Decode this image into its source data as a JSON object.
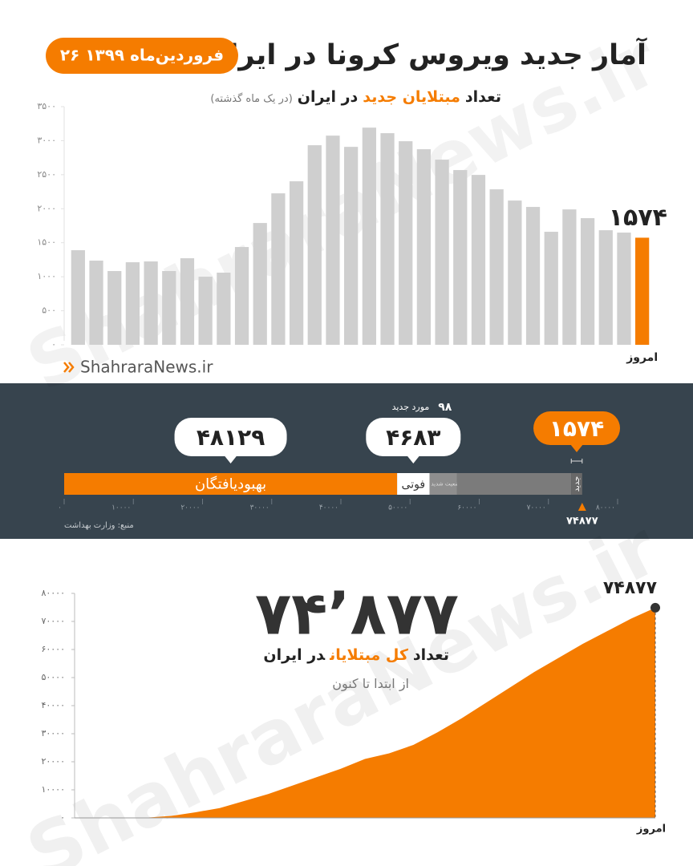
{
  "header": {
    "title": "آمار جدید ویروس کرونا در ایران",
    "date": "۲۶ فروردین‌ماه ۱۳۹۹"
  },
  "watermark": "ShahraraNews.ir",
  "source_link": "ShahraraNews.ir",
  "chart_data": [
    {
      "type": "bar",
      "subtitle": [
        {
          "text": "تعداد",
          "color": "#222222"
        },
        {
          "text": "مبتلایان جدید",
          "color": "#f57c00"
        },
        {
          "text": "در ایران",
          "color": "#222222"
        },
        {
          "text": "(در یک ماه گذشته)",
          "color": "#777777"
        }
      ],
      "categories": [
        null,
        null,
        null,
        null,
        null,
        null,
        null,
        null,
        null,
        null,
        null,
        null,
        null,
        null,
        null,
        null,
        null,
        null,
        null,
        null,
        null,
        null,
        null,
        null,
        null,
        null,
        null,
        null,
        null,
        null,
        null,
        "امروز"
      ],
      "values": [
        1390,
        1237,
        1084,
        1213,
        1225,
        1084,
        1272,
        1001,
        1060,
        1437,
        1790,
        2226,
        2403,
        2933,
        3074,
        2909,
        3192,
        3110,
        2992,
        2874,
        2721,
        2568,
        2497,
        2285,
        2120,
        2026,
        1661,
        1990,
        1861,
        1684,
        1649,
        1574
      ],
      "value_labels": [
        null,
        null,
        null,
        null,
        null,
        null,
        null,
        null,
        null,
        null,
        null,
        null,
        null,
        null,
        null,
        null,
        null,
        null,
        null,
        null,
        null,
        null,
        null,
        null,
        null,
        null,
        null,
        null,
        null,
        null,
        null,
        "۱۵۷۴"
      ],
      "colors": [
        "#cfcfcf",
        "#cfcfcf",
        "#cfcfcf",
        "#cfcfcf",
        "#cfcfcf",
        "#cfcfcf",
        "#cfcfcf",
        "#cfcfcf",
        "#cfcfcf",
        "#cfcfcf",
        "#cfcfcf",
        "#cfcfcf",
        "#cfcfcf",
        "#cfcfcf",
        "#cfcfcf",
        "#cfcfcf",
        "#cfcfcf",
        "#cfcfcf",
        "#cfcfcf",
        "#cfcfcf",
        "#cfcfcf",
        "#cfcfcf",
        "#cfcfcf",
        "#cfcfcf",
        "#cfcfcf",
        "#cfcfcf",
        "#cfcfcf",
        "#cfcfcf",
        "#cfcfcf",
        "#cfcfcf",
        "#cfcfcf",
        "#f57c00"
      ],
      "ylim": [
        0,
        3500
      ],
      "yticks": [
        {
          "value": 0,
          "label": "۰"
        },
        {
          "value": 500,
          "label": "۵۰۰"
        },
        {
          "value": 1000,
          "label": "۱۰۰۰"
        },
        {
          "value": 1500,
          "label": "۱۵۰۰"
        },
        {
          "value": 2000,
          "label": "۲۰۰۰"
        },
        {
          "value": 2500,
          "label": "۲۵۰۰"
        },
        {
          "value": 3000,
          "label": "۳۰۰۰"
        },
        {
          "value": 3500,
          "label": "۳۵۰۰"
        }
      ]
    },
    {
      "type": "stacked_bar_h",
      "series": [
        {
          "name": "بهبودیافتگان",
          "color": "#f57c00",
          "label_box_color": "#ffffff",
          "values": [
            48129
          ],
          "value_labels": [
            "۴۸۱۲۹"
          ]
        },
        {
          "name": "فوتی",
          "color": "#ffffff",
          "label_box_color": "#ffffff",
          "values": [
            4683
          ],
          "value_labels": [
            "۴۶۸۳"
          ]
        },
        {
          "name": "وضعیت شدید",
          "color": "#8e8e8e",
          "values": [
            3987
          ]
        },
        {
          "name": null,
          "color": "#7b7b7b",
          "values": [
            16504
          ]
        },
        {
          "name": "جدید",
          "color": "#686868",
          "label_box_color": "#f57c00",
          "values": [
            1574
          ],
          "value_labels": [
            "۱۵۷۴"
          ]
        }
      ],
      "annotation": [
        "۹۸",
        "مورد جدید"
      ],
      "total": {
        "value": 74877,
        "label": "۷۴۸۷۷"
      },
      "xlim": [
        0,
        80000
      ],
      "xticks": [
        {
          "value": 0,
          "label": "۰"
        },
        {
          "value": 10000,
          "label": "۱۰۰۰۰"
        },
        {
          "value": 20000,
          "label": "۲۰۰۰۰"
        },
        {
          "value": 30000,
          "label": "۳۰۰۰۰"
        },
        {
          "value": 40000,
          "label": "۴۰۰۰۰"
        },
        {
          "value": 50000,
          "label": "۵۰۰۰۰"
        },
        {
          "value": 60000,
          "label": "۶۰۰۰۰"
        },
        {
          "value": 70000,
          "label": "۷۰۰۰۰"
        },
        {
          "value": 80000,
          "label": "۸۰۰۰۰"
        }
      ],
      "source": "منبع: وزارت بهداشت"
    },
    {
      "type": "area",
      "title": "۷۴٬۸۷۷",
      "subtitle": [
        {
          "text": "تعداد",
          "color": "#222222"
        },
        {
          "text": "کل مبتلایان",
          "color": "#f57c00"
        },
        {
          "text": "در ایران",
          "color": "#222222"
        }
      ],
      "note": "از ابتدا تا کنون",
      "color": "#f57c00",
      "categories": [
        null,
        null,
        null,
        null,
        null,
        null,
        null,
        null,
        null,
        null,
        null,
        null,
        null,
        null,
        null,
        null,
        null,
        null,
        null,
        null,
        null,
        null,
        null,
        null,
        "امروز"
      ],
      "values": [
        0,
        0,
        0,
        100,
        700,
        2000,
        3500,
        6000,
        8500,
        11500,
        14500,
        17500,
        21000,
        23000,
        26000,
        30500,
        35500,
        41000,
        46500,
        52000,
        57000,
        62000,
        66500,
        71000,
        74877
      ],
      "value_labels": [
        null,
        null,
        null,
        null,
        null,
        null,
        null,
        null,
        null,
        null,
        null,
        null,
        null,
        null,
        null,
        null,
        null,
        null,
        null,
        null,
        null,
        null,
        null,
        null,
        "۷۴۸۷۷"
      ],
      "ylim": [
        0,
        80000
      ],
      "yticks": [
        {
          "value": 0,
          "label": "۰"
        },
        {
          "value": 10000,
          "label": "۱۰۰۰۰"
        },
        {
          "value": 20000,
          "label": "۲۰۰۰۰"
        },
        {
          "value": 30000,
          "label": "۳۰۰۰۰"
        },
        {
          "value": 40000,
          "label": "۴۰۰۰۰"
        },
        {
          "value": 50000,
          "label": "۵۰۰۰۰"
        },
        {
          "value": 60000,
          "label": "۶۰۰۰۰"
        },
        {
          "value": 70000,
          "label": "۷۰۰۰۰"
        },
        {
          "value": 80000,
          "label": "۸۰۰۰۰"
        }
      ]
    }
  ]
}
